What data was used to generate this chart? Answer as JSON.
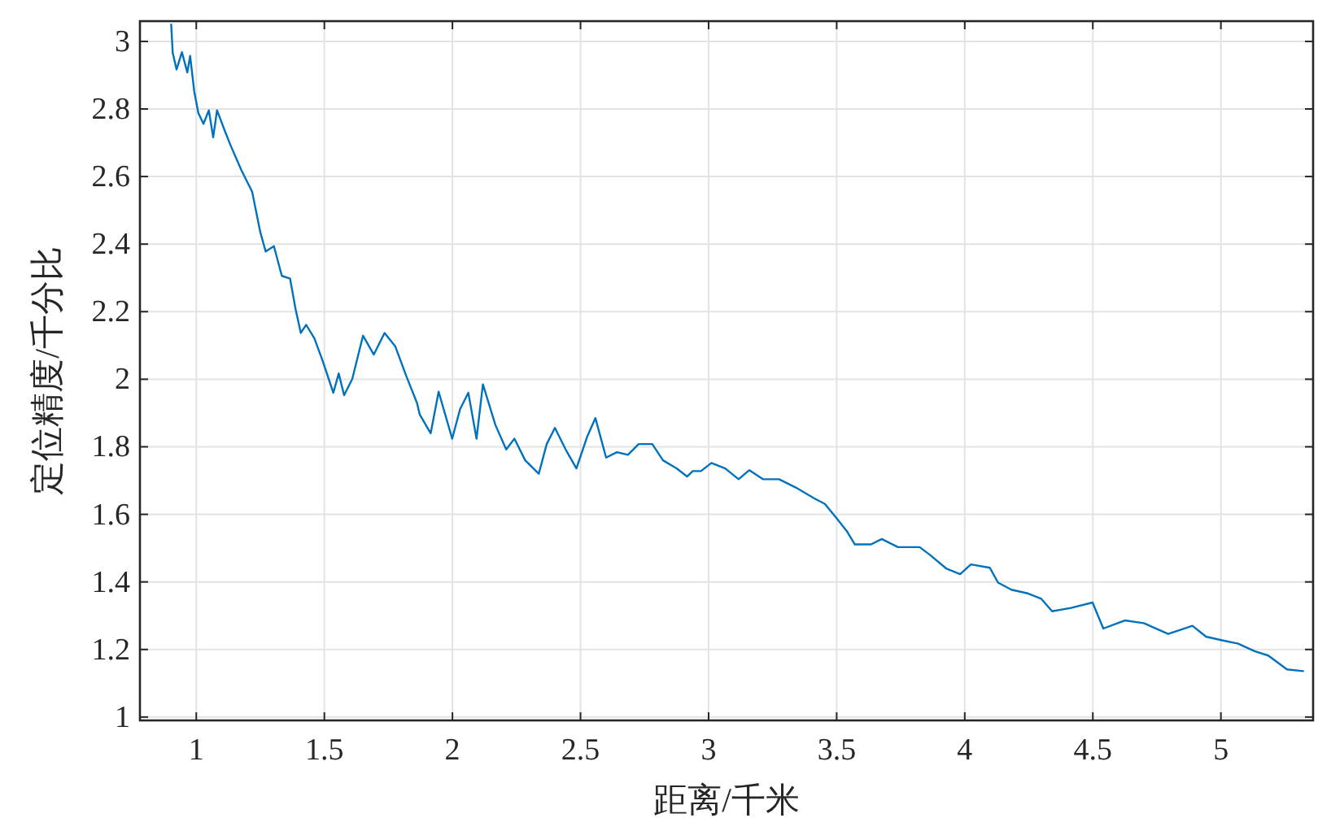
{
  "chart_data": {
    "type": "line",
    "xlabel": "距离/千米",
    "ylabel": "定位精度/千分比",
    "xlim": [
      0.78,
      5.36
    ],
    "ylim": [
      0.99,
      3.06
    ],
    "xticks": [
      1,
      1.5,
      2,
      2.5,
      3,
      3.5,
      4,
      4.5,
      5
    ],
    "yticks": [
      1,
      1.2,
      1.4,
      1.6,
      1.8,
      2,
      2.2,
      2.4,
      2.6,
      2.8,
      3
    ],
    "grid": true,
    "line_style": "solid",
    "series": [
      {
        "color": "#0072bd",
        "x": [
          0.902,
          0.908,
          0.923,
          0.944,
          0.965,
          0.976,
          0.992,
          1.008,
          1.028,
          1.049,
          1.066,
          1.081,
          1.113,
          1.134,
          1.176,
          1.218,
          1.25,
          1.271,
          1.303,
          1.334,
          1.366,
          1.387,
          1.408,
          1.429,
          1.461,
          1.492,
          1.535,
          1.556,
          1.577,
          1.609,
          1.651,
          1.693,
          1.735,
          1.777,
          1.82,
          1.862,
          1.872,
          1.915,
          1.946,
          1.999,
          2.03,
          2.062,
          2.094,
          2.119,
          2.168,
          2.21,
          2.242,
          2.284,
          2.337,
          2.368,
          2.4,
          2.442,
          2.484,
          2.527,
          2.558,
          2.6,
          2.642,
          2.685,
          2.727,
          2.78,
          2.822,
          2.875,
          2.916,
          2.938,
          2.97,
          3.011,
          3.065,
          3.117,
          3.159,
          3.212,
          3.275,
          3.339,
          3.413,
          3.454,
          3.497,
          3.539,
          3.571,
          3.634,
          3.676,
          3.739,
          3.824,
          3.866,
          3.929,
          3.982,
          4.024,
          4.098,
          4.13,
          4.182,
          4.246,
          4.299,
          4.341,
          4.415,
          4.499,
          4.541,
          4.625,
          4.699,
          4.794,
          4.889,
          4.942,
          5.005,
          5.068,
          5.132,
          5.185,
          5.258,
          5.321
        ],
        "values": [
          3.05,
          2.966,
          2.917,
          2.968,
          2.908,
          2.957,
          2.852,
          2.788,
          2.756,
          2.796,
          2.716,
          2.796,
          2.732,
          2.692,
          2.619,
          2.555,
          2.435,
          2.378,
          2.394,
          2.306,
          2.298,
          2.21,
          2.137,
          2.161,
          2.121,
          2.057,
          1.96,
          2.017,
          1.953,
          2.001,
          2.129,
          2.073,
          2.137,
          2.097,
          2.009,
          1.929,
          1.896,
          1.84,
          1.963,
          1.824,
          1.912,
          1.96,
          1.824,
          1.985,
          1.864,
          1.792,
          1.824,
          1.76,
          1.72,
          1.808,
          1.856,
          1.792,
          1.736,
          1.832,
          1.885,
          1.768,
          1.784,
          1.776,
          1.808,
          1.808,
          1.76,
          1.736,
          1.712,
          1.728,
          1.728,
          1.752,
          1.736,
          1.704,
          1.731,
          1.704,
          1.704,
          1.68,
          1.647,
          1.631,
          1.591,
          1.551,
          1.511,
          1.511,
          1.527,
          1.503,
          1.503,
          1.479,
          1.439,
          1.423,
          1.452,
          1.442,
          1.398,
          1.377,
          1.366,
          1.35,
          1.313,
          1.323,
          1.339,
          1.262,
          1.286,
          1.278,
          1.246,
          1.27,
          1.238,
          1.227,
          1.217,
          1.195,
          1.182,
          1.141,
          1.136
        ]
      }
    ]
  }
}
